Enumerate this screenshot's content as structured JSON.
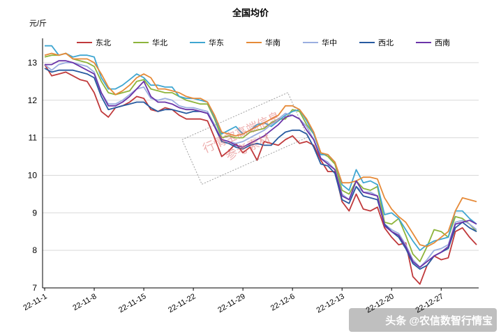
{
  "chart_data": {
    "type": "line",
    "title": "全国均价",
    "ylabel": "元/斤",
    "ylim": [
      7,
      13.5
    ],
    "yticks": [
      7,
      8,
      9,
      10,
      11,
      12,
      13
    ],
    "x_tick_labels": [
      "22-11-1",
      "22-11-8",
      "22-11-15",
      "22-11-22",
      "22-11-29",
      "22-12-6",
      "22-12-13",
      "22-12-20",
      "22-12-27"
    ],
    "x_count": 62,
    "legend_position": "top",
    "series": [
      {
        "name": "东北",
        "color": "#c0393b",
        "values": [
          12.95,
          12.65,
          12.7,
          12.75,
          12.65,
          12.55,
          12.5,
          12.2,
          11.7,
          11.55,
          11.8,
          11.85,
          11.95,
          12.1,
          12.05,
          11.75,
          11.7,
          11.8,
          11.75,
          11.6,
          11.5,
          11.5,
          11.5,
          11.45,
          11.0,
          10.5,
          10.65,
          10.85,
          10.6,
          10.75,
          10.4,
          10.9,
          10.85,
          10.8,
          10.95,
          11.05,
          10.85,
          10.9,
          10.8,
          10.4,
          10.1,
          10.1,
          9.3,
          9.05,
          9.5,
          9.1,
          9.05,
          9.15,
          8.6,
          8.35,
          8.15,
          8.2,
          7.3,
          7.1,
          7.6,
          7.85,
          7.75,
          7.8,
          8.5,
          8.6,
          8.35,
          8.15
        ]
      },
      {
        "name": "华北",
        "color": "#8db43b",
        "values": [
          13.15,
          13.2,
          13.2,
          13.25,
          13.1,
          13.05,
          13.0,
          12.9,
          12.5,
          12.2,
          12.15,
          12.2,
          12.25,
          12.5,
          12.55,
          12.3,
          12.25,
          12.2,
          12.2,
          12.1,
          12.0,
          11.95,
          11.9,
          11.9,
          11.5,
          11.0,
          11.05,
          11.0,
          11.0,
          11.15,
          11.2,
          11.25,
          11.4,
          11.5,
          11.5,
          11.75,
          11.7,
          11.35,
          11.1,
          10.6,
          10.5,
          10.3,
          9.6,
          9.5,
          9.85,
          9.65,
          9.6,
          9.7,
          8.75,
          8.7,
          8.85,
          8.4,
          7.9,
          7.7,
          8.1,
          8.55,
          8.5,
          8.35,
          8.9,
          8.85,
          8.7,
          8.5
        ]
      },
      {
        "name": "华东",
        "color": "#3fa6d1",
        "values": [
          13.45,
          13.45,
          13.2,
          13.25,
          13.15,
          13.2,
          13.2,
          13.15,
          12.6,
          12.3,
          12.3,
          12.4,
          12.55,
          12.7,
          12.6,
          12.4,
          12.4,
          12.35,
          12.35,
          12.1,
          12.05,
          12.05,
          12.0,
          11.95,
          11.55,
          11.1,
          11.2,
          11.3,
          11.1,
          11.2,
          11.35,
          11.4,
          11.3,
          11.45,
          11.6,
          11.7,
          11.75,
          11.45,
          11.1,
          10.55,
          10.55,
          10.35,
          9.75,
          9.6,
          10.15,
          9.8,
          9.85,
          9.75,
          8.95,
          9.0,
          8.85,
          8.55,
          8.25,
          8.0,
          8.15,
          8.25,
          8.3,
          8.35,
          9.05,
          9.05,
          8.85,
          8.7
        ]
      },
      {
        "name": "华南",
        "color": "#e68a38",
        "values": [
          13.2,
          13.25,
          13.2,
          13.25,
          13.1,
          13.1,
          13.1,
          13.0,
          12.7,
          12.35,
          12.15,
          12.25,
          12.4,
          12.6,
          12.7,
          12.6,
          12.3,
          12.3,
          12.25,
          12.2,
          12.1,
          12.05,
          12.05,
          11.95,
          11.6,
          11.15,
          11.1,
          11.05,
          11.1,
          11.2,
          11.3,
          11.4,
          11.5,
          11.6,
          11.85,
          11.85,
          11.75,
          11.5,
          11.15,
          10.6,
          10.55,
          10.35,
          9.8,
          9.8,
          9.85,
          9.95,
          9.95,
          9.9,
          9.4,
          9.1,
          8.9,
          8.75,
          8.45,
          8.15,
          8.1,
          8.2,
          8.35,
          8.5,
          9.05,
          9.4,
          9.35,
          9.3
        ]
      },
      {
        "name": "华中",
        "color": "#9aaee0",
        "values": [
          12.95,
          12.8,
          12.95,
          13.0,
          13.0,
          12.95,
          12.9,
          12.75,
          12.2,
          11.9,
          11.9,
          12.0,
          12.15,
          12.3,
          12.35,
          12.05,
          12.0,
          12.05,
          12.0,
          11.85,
          11.8,
          11.8,
          11.75,
          11.7,
          11.35,
          10.95,
          10.9,
          10.85,
          10.9,
          11.0,
          11.1,
          11.2,
          11.35,
          11.5,
          11.65,
          11.6,
          11.5,
          11.3,
          10.95,
          10.45,
          10.35,
          10.15,
          9.5,
          9.35,
          9.7,
          9.55,
          9.55,
          9.45,
          8.7,
          8.55,
          8.45,
          8.15,
          7.75,
          7.55,
          7.75,
          8.0,
          8.05,
          8.15,
          8.75,
          8.8,
          8.7,
          8.55
        ]
      },
      {
        "name": "西北",
        "color": "#275aa0",
        "values": [
          12.85,
          12.75,
          12.8,
          12.8,
          12.8,
          12.75,
          12.7,
          12.6,
          12.1,
          11.75,
          11.8,
          11.85,
          11.9,
          11.95,
          11.95,
          11.8,
          11.7,
          11.75,
          11.75,
          11.7,
          11.65,
          11.7,
          11.7,
          11.65,
          11.3,
          10.9,
          10.85,
          10.75,
          10.7,
          10.8,
          10.85,
          10.8,
          10.8,
          11.0,
          11.15,
          11.2,
          11.2,
          11.1,
          10.75,
          10.3,
          10.25,
          10.05,
          9.35,
          9.25,
          9.7,
          9.45,
          9.4,
          9.35,
          8.7,
          8.5,
          8.35,
          8.05,
          7.65,
          7.5,
          7.6,
          7.85,
          7.95,
          8.05,
          8.6,
          8.75,
          8.6,
          8.5
        ]
      },
      {
        "name": "西南",
        "color": "#6a34a8",
        "values": [
          12.95,
          12.95,
          13.05,
          13.05,
          13.0,
          12.9,
          12.8,
          12.7,
          12.2,
          11.85,
          11.85,
          11.95,
          12.1,
          12.3,
          12.5,
          12.1,
          11.95,
          11.95,
          11.9,
          11.8,
          11.75,
          11.75,
          11.7,
          11.65,
          11.3,
          10.95,
          10.9,
          10.8,
          10.75,
          10.85,
          10.95,
          11.05,
          11.2,
          11.35,
          11.55,
          11.6,
          11.5,
          11.2,
          10.95,
          10.45,
          10.3,
          10.15,
          9.45,
          9.35,
          9.85,
          9.55,
          9.5,
          9.45,
          8.65,
          8.5,
          8.4,
          8.1,
          7.7,
          7.55,
          7.7,
          7.85,
          7.95,
          8.1,
          8.7,
          8.75,
          8.8,
          8.7
        ]
      }
    ]
  },
  "watermark": {
    "line1": "行情宝高端信息",
    "line2": "参考素材"
  },
  "credit": "头条 @农信数智行情宝"
}
